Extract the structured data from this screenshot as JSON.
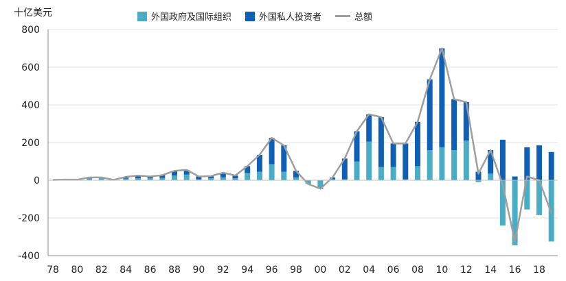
{
  "chart_data": {
    "type": "bar",
    "ylabel": "十亿美元",
    "ylim": [
      -400,
      800
    ],
    "yticks": [
      800,
      600,
      400,
      200,
      0,
      -200,
      -400
    ],
    "grid": true,
    "legend_position": "top",
    "x_tick_labels": [
      "78",
      "80",
      "82",
      "84",
      "86",
      "88",
      "90",
      "92",
      "94",
      "96",
      "98",
      "00",
      "02",
      "04",
      "06",
      "08",
      "10",
      "12",
      "14",
      "16",
      "18"
    ],
    "categories": [
      "78",
      "79",
      "80",
      "81",
      "82",
      "83",
      "84",
      "85",
      "86",
      "87",
      "88",
      "89",
      "90",
      "91",
      "92",
      "93",
      "94",
      "95",
      "96",
      "97",
      "98",
      "99",
      "00",
      "01",
      "02",
      "03",
      "04",
      "05",
      "06",
      "07",
      "08",
      "09",
      "10",
      "11",
      "12",
      "13",
      "14",
      "15",
      "16",
      "17",
      "18",
      "19"
    ],
    "series": [
      {
        "name": "外国政府及国际组织",
        "kind": "bar",
        "color": "#4bacc6",
        "values": [
          2,
          3,
          3,
          10,
          12,
          2,
          8,
          10,
          10,
          12,
          25,
          30,
          5,
          10,
          15,
          10,
          40,
          45,
          85,
          45,
          15,
          -20,
          -40,
          5,
          5,
          100,
          205,
          70,
          70,
          5,
          75,
          160,
          175,
          160,
          210,
          -10,
          35,
          -240,
          -345,
          -155,
          -185,
          -325
        ]
      },
      {
        "name": "外国私人投资者",
        "kind": "bar",
        "color": "#0f5fb5",
        "values": [
          0,
          0,
          0,
          5,
          3,
          0,
          10,
          15,
          10,
          15,
          25,
          25,
          15,
          12,
          25,
          15,
          35,
          90,
          140,
          140,
          35,
          0,
          -5,
          10,
          110,
          160,
          145,
          265,
          125,
          190,
          235,
          375,
          525,
          270,
          205,
          45,
          125,
          215,
          20,
          175,
          185,
          150
        ]
      },
      {
        "name": "总额",
        "kind": "line",
        "color": "#9e9e9e",
        "values": [
          2,
          3,
          3,
          15,
          15,
          2,
          18,
          25,
          20,
          27,
          50,
          55,
          20,
          22,
          40,
          25,
          75,
          135,
          225,
          185,
          50,
          -20,
          -45,
          15,
          115,
          260,
          350,
          335,
          195,
          195,
          310,
          535,
          700,
          430,
          415,
          35,
          160,
          -25,
          -325,
          20,
          0,
          -175
        ]
      }
    ]
  }
}
